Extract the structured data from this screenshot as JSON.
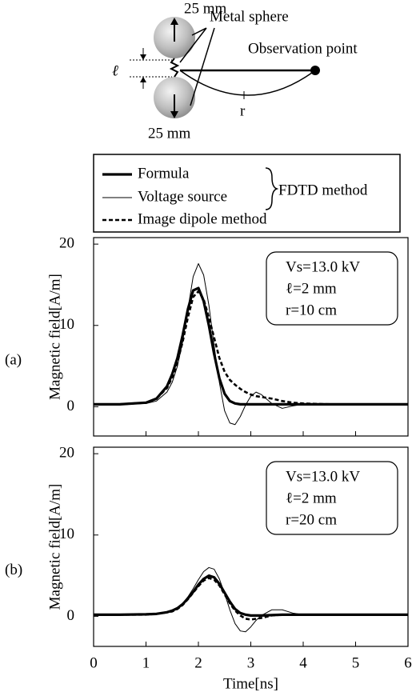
{
  "diagram": {
    "sphere_top_size": "25 mm",
    "sphere_bottom_size": "25 mm",
    "sphere_label": "Metal sphere",
    "observation_label": "Observation point",
    "gap_label": "ℓ",
    "distance_label": "r"
  },
  "legend": {
    "group_label": "FDTD method"
  },
  "chart_data": [
    {
      "type": "line",
      "panel_label": "(a)",
      "ylabel": "Magnetic field[A/m]",
      "annotations": [
        "Vs=13.0 kV",
        "ℓ=2 mm",
        "r=10 cm"
      ],
      "xlim": [
        0,
        6
      ],
      "xticks": [
        0,
        1,
        2,
        3,
        4,
        5,
        6
      ],
      "ylim": [
        -3.6,
        20.8
      ],
      "yticks": [
        0,
        10,
        20
      ],
      "x": [
        0,
        0.5,
        1,
        1.2,
        1.4,
        1.5,
        1.6,
        1.7,
        1.8,
        1.9,
        2.0,
        2.1,
        2.2,
        2.3,
        2.4,
        2.5,
        2.6,
        2.7,
        2.8,
        2.9,
        3.0,
        3.1,
        3.2,
        3.4,
        3.6,
        3.8,
        4,
        4.5,
        5,
        5.5,
        6
      ],
      "series": [
        {
          "name": "Formula",
          "color": "#000000",
          "style": "thick",
          "values": [
            0.3,
            0.3,
            0.5,
            1.0,
            2.5,
            4.0,
            6.0,
            8.8,
            12.0,
            14.3,
            14.6,
            13.0,
            10.0,
            6.5,
            3.5,
            1.6,
            0.7,
            0.4,
            0.3,
            0.3,
            0.3,
            0.3,
            0.3,
            0.3,
            0.3,
            0.3,
            0.3,
            0.3,
            0.3,
            0.3,
            0.3
          ]
        },
        {
          "name": "Voltage source",
          "color": "#000000",
          "style": "thin",
          "values": [
            0.3,
            0.3,
            0.4,
            0.7,
            1.8,
            3.0,
            5.0,
            8.0,
            12.0,
            16.0,
            17.6,
            16.2,
            12.5,
            7.5,
            3.0,
            -0.5,
            -2.0,
            -2.2,
            -1.2,
            0.2,
            1.3,
            1.8,
            1.5,
            0.4,
            -0.2,
            0.1,
            0.3,
            0.3,
            0.3,
            0.3,
            0.3
          ]
        },
        {
          "name": "Image dipole method",
          "color": "#000000",
          "style": "dashed",
          "values": [
            0.3,
            0.3,
            0.5,
            1.0,
            2.3,
            3.6,
            5.5,
            8.0,
            11.0,
            13.5,
            14.2,
            13.2,
            11.0,
            8.5,
            6.0,
            4.3,
            3.3,
            2.7,
            2.2,
            1.8,
            1.5,
            1.3,
            1.2,
            1.0,
            0.7,
            0.5,
            0.4,
            0.3,
            0.3,
            0.3,
            0.3
          ]
        }
      ]
    },
    {
      "type": "line",
      "panel_label": "(b)",
      "ylabel": "Magnetic field[A/m]",
      "xlabel": "Time[ns]",
      "annotations": [
        "Vs=13.0 kV",
        "ℓ=2 mm",
        "r=20 cm"
      ],
      "xlim": [
        0,
        6
      ],
      "xticks": [
        0,
        1,
        2,
        3,
        4,
        5,
        6
      ],
      "ylim": [
        -3.7,
        20.8
      ],
      "yticks": [
        0,
        10,
        20
      ],
      "x": [
        0,
        0.5,
        1,
        1.2,
        1.4,
        1.5,
        1.6,
        1.7,
        1.8,
        1.9,
        2.0,
        2.1,
        2.2,
        2.3,
        2.4,
        2.5,
        2.6,
        2.7,
        2.8,
        2.9,
        3.0,
        3.1,
        3.2,
        3.4,
        3.6,
        3.8,
        4,
        4.5,
        5,
        5.5,
        6
      ],
      "series": [
        {
          "color": "#000000",
          "style": "thick",
          "values": [
            0.2,
            0.2,
            0.25,
            0.3,
            0.5,
            0.7,
            1.0,
            1.5,
            2.2,
            3.0,
            3.9,
            4.6,
            5.0,
            4.8,
            4.0,
            2.9,
            1.8,
            0.9,
            0.4,
            0.2,
            0.1,
            0.1,
            0.1,
            0.15,
            0.2,
            0.2,
            0.2,
            0.2,
            0.2,
            0.2,
            0.2
          ]
        },
        {
          "color": "#000000",
          "style": "thin",
          "values": [
            0.2,
            0.2,
            0.2,
            0.3,
            0.5,
            0.7,
            1.0,
            1.6,
            2.4,
            3.4,
            4.5,
            5.5,
            6.0,
            5.8,
            4.6,
            2.8,
            0.8,
            -0.9,
            -1.8,
            -1.9,
            -1.3,
            -0.5,
            0.1,
            0.8,
            0.8,
            0.4,
            0.2,
            0.2,
            0.2,
            0.2,
            0.2
          ]
        },
        {
          "color": "#000000",
          "style": "dashed",
          "values": [
            0.2,
            0.2,
            0.2,
            0.3,
            0.5,
            0.6,
            0.9,
            1.4,
            2.1,
            2.9,
            3.7,
            4.4,
            4.7,
            4.5,
            3.8,
            2.7,
            1.6,
            0.7,
            0.1,
            -0.3,
            -0.4,
            -0.3,
            -0.2,
            0.1,
            0.2,
            0.2,
            0.2,
            0.2,
            0.2,
            0.2,
            0.2
          ]
        }
      ]
    }
  ]
}
